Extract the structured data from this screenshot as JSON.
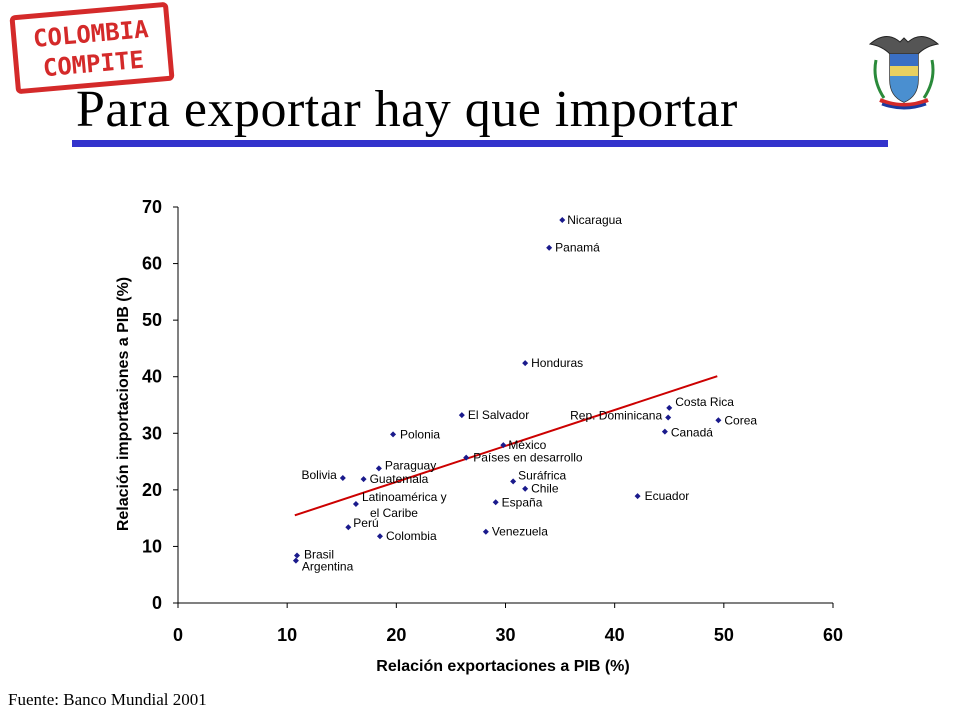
{
  "logo": {
    "line1": "COLOMBIA",
    "line2": "COMPITE",
    "color": "#d42a2a"
  },
  "crest": {
    "icon": "colombia-coat-of-arms-icon"
  },
  "title": "Para exportar hay que importar",
  "source": "Fuente: Banco Mundial 2001",
  "colors": {
    "rule": "#3333cc",
    "points": "#1a1a8c",
    "trend": "#cc0000"
  },
  "chart_data": {
    "type": "scatter",
    "xlabel": "Relación exportaciones a PIB (%)",
    "ylabel": "Relación importaciones a PIB (%)",
    "xlim": [
      0,
      60
    ],
    "ylim": [
      0,
      70
    ],
    "xticks": [
      0,
      10,
      20,
      30,
      40,
      50,
      60
    ],
    "yticks": [
      0,
      10,
      20,
      30,
      40,
      50,
      60,
      70
    ],
    "grid": false,
    "points": [
      {
        "label": "Nicaragua",
        "x": 35.2,
        "y": 67.7
      },
      {
        "label": "Panamá",
        "x": 34.0,
        "y": 62.8
      },
      {
        "label": "Honduras",
        "x": 31.8,
        "y": 42.4
      },
      {
        "label": "El Salvador",
        "x": 26.0,
        "y": 33.2
      },
      {
        "label": "Rep. Dominicana",
        "x": 44.9,
        "y": 32.8
      },
      {
        "label": "Costa Rica",
        "x": 45.0,
        "y": 34.5
      },
      {
        "label": "Corea",
        "x": 49.5,
        "y": 32.3
      },
      {
        "label": "Canadá",
        "x": 44.6,
        "y": 30.3
      },
      {
        "label": "Polonia",
        "x": 19.7,
        "y": 29.8
      },
      {
        "label": "México",
        "x": 29.8,
        "y": 27.9
      },
      {
        "label": "Países en desarrollo",
        "x": 26.4,
        "y": 25.7
      },
      {
        "label": "Paraguay",
        "x": 18.4,
        "y": 23.8
      },
      {
        "label": "Bolivia",
        "x": 15.1,
        "y": 22.1
      },
      {
        "label": "Guatemala",
        "x": 17.0,
        "y": 21.9
      },
      {
        "label": "Suráfrica",
        "x": 30.7,
        "y": 21.5
      },
      {
        "label": "Chile",
        "x": 31.8,
        "y": 20.2
      },
      {
        "label": "Ecuador",
        "x": 42.1,
        "y": 18.9
      },
      {
        "label": "España",
        "x": 29.1,
        "y": 17.8
      },
      {
        "label": "Latinoamérica y el Caribe",
        "x": 16.3,
        "y": 17.5
      },
      {
        "label": "Perú",
        "x": 15.6,
        "y": 13.4
      },
      {
        "label": "Venezuela",
        "x": 28.2,
        "y": 12.6
      },
      {
        "label": "Colombia",
        "x": 18.5,
        "y": 11.8
      },
      {
        "label": "Brasil",
        "x": 10.9,
        "y": 8.4
      },
      {
        "label": "Argentina",
        "x": 10.8,
        "y": 7.5
      }
    ],
    "trendline": {
      "x": [
        10.7,
        49.4
      ],
      "y": [
        15.5,
        40.1
      ]
    }
  }
}
